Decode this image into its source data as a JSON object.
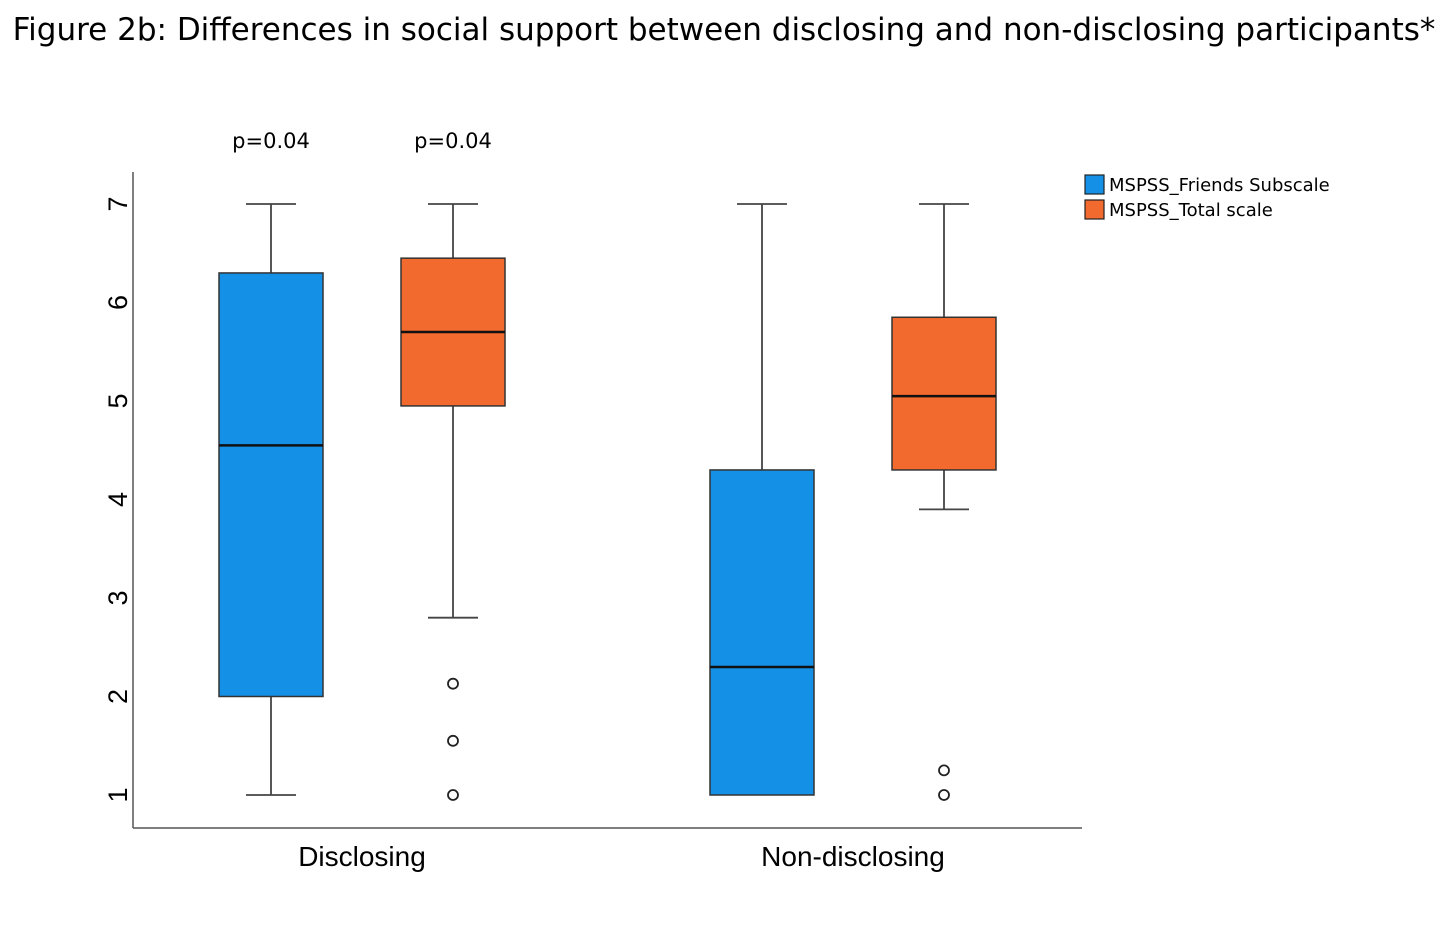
{
  "title": "Figure 2b: Differences in social support between disclosing and non-disclosing participants*",
  "colors": {
    "friends": "#1490E6",
    "total": "#F26A2E"
  },
  "chart_data": {
    "type": "box",
    "title": "Figure 2b: Differences in social support between disclosing and non-disclosing participants*",
    "xlabel": "",
    "ylabel": "",
    "ylim": [
      0.7,
      7.4
    ],
    "yticks": [
      1,
      2,
      3,
      4,
      5,
      6,
      7
    ],
    "categories": [
      "Disclosing",
      "Non-disclosing"
    ],
    "legend_position": "top-right",
    "series": [
      {
        "name": "MSPSS_Friends Subscale",
        "color": "#1490E6",
        "boxes": [
          {
            "category": "Disclosing",
            "min": 1.0,
            "q1": 2.0,
            "median": 4.55,
            "q3": 6.3,
            "max": 7.0,
            "outliers": []
          },
          {
            "category": "Non-disclosing",
            "min": 1.0,
            "q1": 1.0,
            "median": 2.3,
            "q3": 4.3,
            "max": 7.0,
            "outliers": []
          }
        ]
      },
      {
        "name": "MSPSS_Total scale",
        "color": "#F26A2E",
        "boxes": [
          {
            "category": "Disclosing",
            "min": 2.8,
            "q1": 4.95,
            "median": 5.7,
            "q3": 6.45,
            "max": 7.0,
            "outliers": [
              2.13,
              1.55,
              1.0
            ]
          },
          {
            "category": "Non-disclosing",
            "min": 3.9,
            "q1": 4.3,
            "median": 5.05,
            "q3": 5.85,
            "max": 7.0,
            "outliers": [
              1.25,
              1.0
            ]
          }
        ]
      }
    ],
    "annotations": [
      "p=0.04",
      "p=0.04"
    ]
  }
}
